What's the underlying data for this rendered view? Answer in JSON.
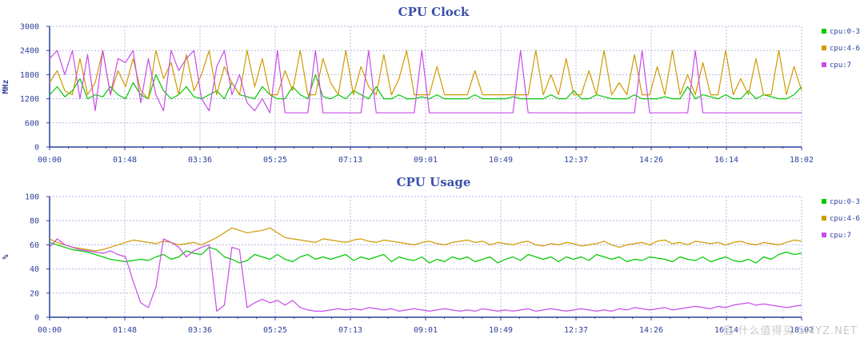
{
  "chart_data": [
    {
      "type": "line",
      "title": "CPU Clock",
      "ylabel": "MHz",
      "xlabel": "",
      "ylim": [
        0,
        3000
      ],
      "yticks": [
        0,
        600,
        1200,
        1800,
        2400,
        3000
      ],
      "xticks": [
        "00:00",
        "01:48",
        "03:36",
        "05:25",
        "07:13",
        "09:01",
        "10:49",
        "12:37",
        "14:26",
        "16:14",
        "18:02"
      ],
      "grid": true,
      "legend_placement": "right",
      "series": [
        {
          "name": "cpu:0-3",
          "color": "#00c800",
          "values": [
            1300,
            1500,
            1250,
            1400,
            1700,
            1200,
            1300,
            1250,
            1500,
            1300,
            1200,
            1600,
            1300,
            1200,
            1800,
            1400,
            1200,
            1300,
            1500,
            1250,
            1200,
            1300,
            1400,
            1200,
            1600,
            1300,
            1250,
            1200,
            1500,
            1300,
            1200,
            1200,
            1500,
            1300,
            1200,
            1800,
            1250,
            1200,
            1300,
            1200,
            1400,
            1300,
            1200,
            1500,
            1200,
            1200,
            1300,
            1200,
            1200,
            1250,
            1200,
            1300,
            1200,
            1200,
            1200,
            1200,
            1300,
            1200,
            1200,
            1200,
            1200,
            1250,
            1200,
            1200,
            1200,
            1200,
            1300,
            1200,
            1200,
            1400,
            1200,
            1200,
            1300,
            1250,
            1200,
            1200,
            1200,
            1300,
            1200,
            1200,
            1200,
            1250,
            1200,
            1200,
            1500,
            1200,
            1300,
            1250,
            1200,
            1300,
            1200,
            1200,
            1400,
            1200,
            1300,
            1250,
            1200,
            1200,
            1300,
            1500
          ]
        },
        {
          "name": "cpu:4-6",
          "color": "#d09a00",
          "values": [
            1600,
            1900,
            1400,
            1300,
            2200,
            1300,
            1600,
            2400,
            1300,
            1900,
            1500,
            2200,
            1400,
            1200,
            2400,
            1700,
            2100,
            1300,
            2300,
            1400,
            1800,
            2400,
            1300,
            2000,
            1600,
            1300,
            2400,
            1500,
            2200,
            1300,
            1300,
            1900,
            1400,
            2400,
            1300,
            1300,
            2200,
            1600,
            1300,
            2400,
            1300,
            2000,
            1500,
            1300,
            2300,
            1300,
            1700,
            2400,
            1300,
            1300,
            1300,
            2000,
            1300,
            1300,
            1300,
            1300,
            1900,
            1300,
            1300,
            1300,
            1300,
            1300,
            1300,
            1300,
            2400,
            1300,
            1800,
            1300,
            2200,
            1300,
            1300,
            1900,
            1300,
            2400,
            1300,
            1600,
            1300,
            2300,
            1300,
            1300,
            2000,
            1300,
            2400,
            1300,
            1800,
            1300,
            2100,
            1300,
            1300,
            2400,
            1300,
            1700,
            1300,
            2200,
            1300,
            1300,
            2400,
            1300,
            2000,
            1400
          ]
        },
        {
          "name": "cpu:7",
          "color": "#c84ce8",
          "values": [
            2200,
            2400,
            1800,
            2400,
            1200,
            2300,
            900,
            2400,
            1300,
            2200,
            2100,
            2400,
            1100,
            2200,
            1300,
            900,
            2400,
            1900,
            2200,
            2400,
            1200,
            900,
            2000,
            2400,
            1300,
            1800,
            1100,
            900,
            1200,
            850,
            2400,
            850,
            850,
            850,
            850,
            2400,
            850,
            850,
            850,
            850,
            850,
            850,
            2400,
            850,
            850,
            850,
            850,
            850,
            850,
            2400,
            850,
            850,
            850,
            850,
            850,
            850,
            850,
            850,
            850,
            850,
            850,
            850,
            2400,
            850,
            850,
            850,
            850,
            850,
            850,
            850,
            850,
            850,
            850,
            850,
            850,
            850,
            850,
            850,
            2400,
            850,
            850,
            850,
            850,
            850,
            850,
            2400,
            850,
            850,
            850,
            850,
            850,
            850,
            850,
            850,
            850,
            850,
            850,
            850,
            850,
            850
          ]
        }
      ]
    },
    {
      "type": "line",
      "title": "CPU Usage",
      "ylabel": "%",
      "xlabel": "",
      "ylim": [
        0,
        100
      ],
      "yticks": [
        0,
        20,
        40,
        60,
        80,
        100
      ],
      "xticks": [
        "00:00",
        "01:48",
        "03:36",
        "05:25",
        "07:13",
        "09:01",
        "10:49",
        "12:37",
        "14:26",
        "16:14",
        "18:02"
      ],
      "grid": true,
      "legend_placement": "right",
      "series": [
        {
          "name": "cpu:0-3",
          "color": "#00c800",
          "values": [
            62,
            60,
            58,
            56,
            55,
            54,
            52,
            50,
            48,
            47,
            46,
            47,
            48,
            47,
            50,
            52,
            48,
            50,
            55,
            53,
            52,
            58,
            56,
            50,
            48,
            45,
            47,
            52,
            50,
            48,
            52,
            48,
            46,
            50,
            52,
            48,
            50,
            48,
            50,
            52,
            47,
            50,
            48,
            50,
            52,
            46,
            50,
            48,
            47,
            50,
            45,
            48,
            46,
            50,
            48,
            50,
            46,
            48,
            50,
            45,
            48,
            50,
            47,
            52,
            50,
            48,
            50,
            46,
            50,
            48,
            50,
            47,
            52,
            50,
            48,
            50,
            46,
            48,
            47,
            50,
            49,
            48,
            46,
            50,
            48,
            47,
            50,
            46,
            48,
            50,
            47,
            46,
            48,
            45,
            50,
            48,
            52,
            54,
            52,
            53
          ]
        },
        {
          "name": "cpu:4-6",
          "color": "#d09a00",
          "values": [
            65,
            62,
            60,
            58,
            57,
            56,
            55,
            56,
            58,
            60,
            62,
            64,
            63,
            62,
            61,
            63,
            62,
            60,
            61,
            62,
            60,
            63,
            66,
            70,
            74,
            72,
            70,
            71,
            72,
            74,
            70,
            66,
            65,
            64,
            63,
            62,
            65,
            64,
            63,
            62,
            64,
            65,
            63,
            62,
            64,
            63,
            62,
            61,
            60,
            62,
            63,
            61,
            60,
            62,
            63,
            64,
            62,
            63,
            60,
            62,
            61,
            60,
            62,
            63,
            60,
            59,
            61,
            60,
            62,
            61,
            59,
            60,
            61,
            63,
            60,
            58,
            60,
            61,
            62,
            60,
            63,
            64,
            61,
            62,
            60,
            63,
            62,
            61,
            62,
            60,
            62,
            63,
            61,
            60,
            62,
            61,
            60,
            62,
            64,
            63
          ]
        },
        {
          "name": "cpu:7",
          "color": "#c84ce8",
          "values": [
            58,
            65,
            60,
            58,
            56,
            55,
            54,
            53,
            55,
            52,
            50,
            30,
            12,
            8,
            25,
            65,
            62,
            58,
            50,
            55,
            58,
            60,
            5,
            10,
            58,
            56,
            8,
            12,
            15,
            12,
            14,
            10,
            14,
            8,
            6,
            5,
            5,
            6,
            7,
            6,
            7,
            6,
            8,
            7,
            6,
            7,
            5,
            6,
            7,
            6,
            5,
            6,
            7,
            6,
            5,
            6,
            5,
            7,
            6,
            5,
            6,
            5,
            6,
            7,
            5,
            6,
            7,
            6,
            5,
            6,
            7,
            6,
            5,
            6,
            5,
            7,
            6,
            8,
            7,
            6,
            7,
            8,
            6,
            7,
            8,
            9,
            8,
            7,
            9,
            8,
            10,
            11,
            12,
            10,
            11,
            10,
            9,
            8,
            9,
            10
          ]
        }
      ]
    }
  ],
  "watermark": "值 什么值得买 SMYZ.NET"
}
